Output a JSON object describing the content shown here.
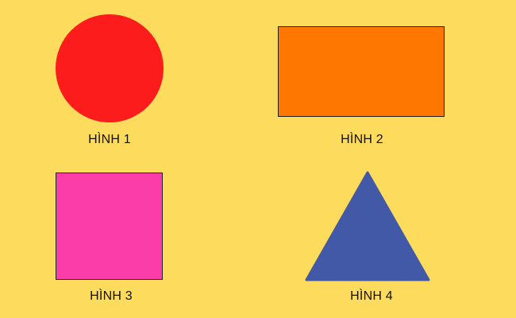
{
  "figures": [
    {
      "shape": "circle",
      "label": "HÌNH 1",
      "color": "#FD1C1C"
    },
    {
      "shape": "rectangle",
      "label": "HÌNH 2",
      "color": "#FE7700"
    },
    {
      "shape": "square",
      "label": "HÌNH 3",
      "color": "#FB3DA9"
    },
    {
      "shape": "triangle",
      "label": "HÌNH 4",
      "color": "#4259A8"
    }
  ],
  "background_color": "#FDDB5C"
}
